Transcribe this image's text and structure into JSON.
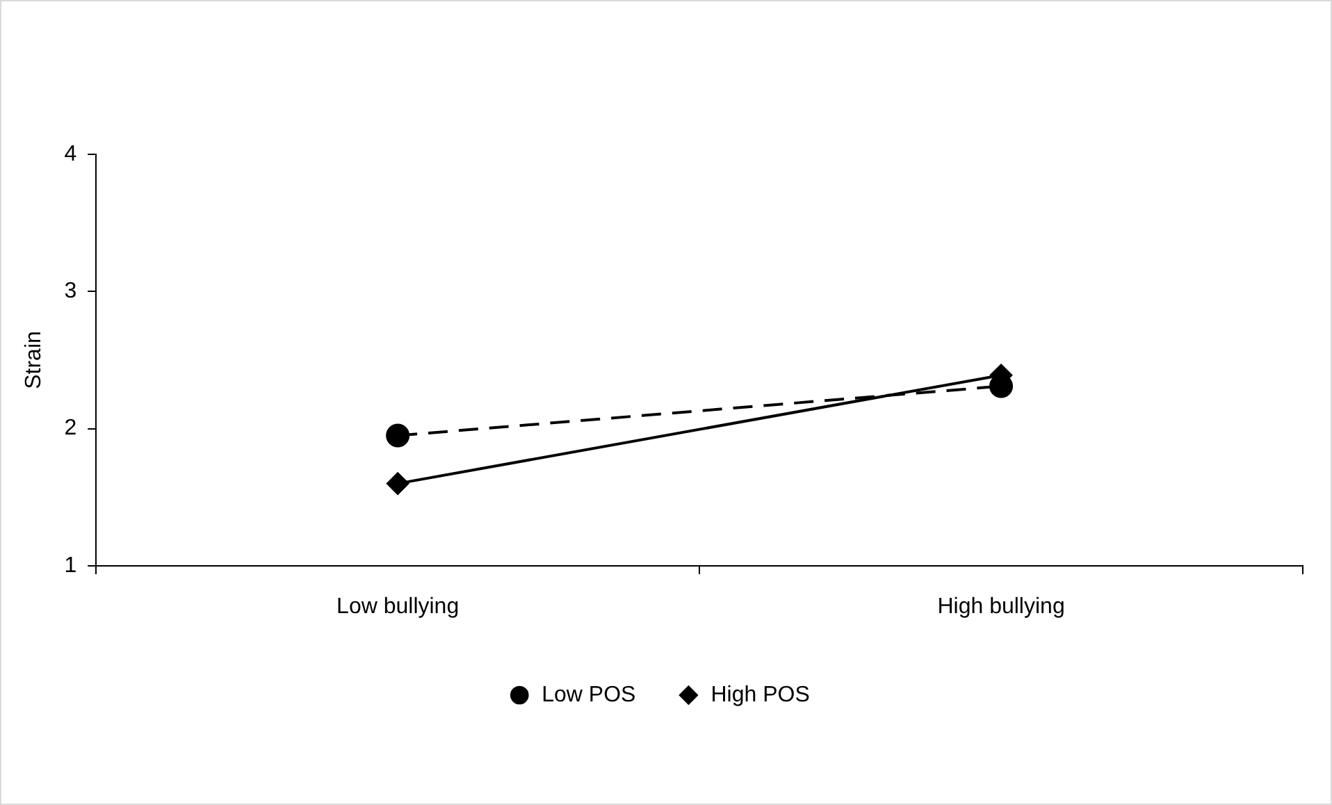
{
  "chart_data": {
    "type": "line",
    "ylabel": "Strain",
    "categories": [
      "Low bullying",
      "High bullying"
    ],
    "series": [
      {
        "name": "Low POS",
        "color": "#000000",
        "values": [
          1.95,
          2.31
        ],
        "marker": "circle",
        "line_style": "dashed"
      },
      {
        "name": "High POS",
        "color": "#000000",
        "values": [
          1.6,
          2.39
        ],
        "marker": "diamond",
        "line_style": "solid"
      }
    ],
    "ylim": [
      1,
      4
    ],
    "yticks": [
      1,
      2,
      3,
      4
    ],
    "grid": false,
    "legend": "bottom"
  }
}
